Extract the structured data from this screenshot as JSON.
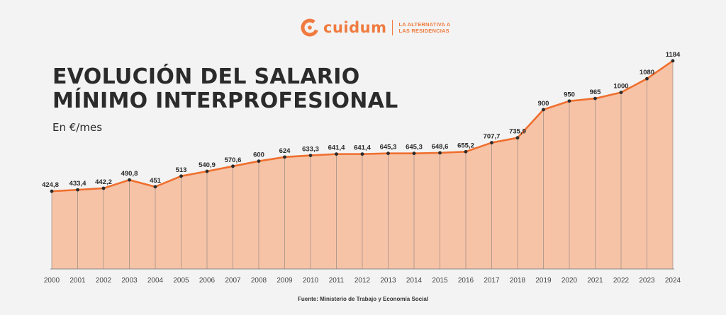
{
  "header": {
    "brand": "cuidum",
    "tagline_line1": "LA ALTERNATIVA A",
    "tagline_line2": "LAS RESIDENCIAS",
    "title_line1": "EVOLUCIÓN DEL SALARIO",
    "title_line2": "MÍNIMO INTERPROFESIONAL",
    "subtitle": "En €/mes"
  },
  "footer": {
    "source": "Fuente: Ministerio de Trabajo y Economía Social"
  },
  "colors": {
    "line": "#ef6f2e",
    "area": "#f6c3a7",
    "brand": "#f07b3f",
    "point": "#2b2b2b"
  },
  "chart_data": {
    "type": "area",
    "title": "EVOLUCIÓN DEL SALARIO MÍNIMO INTERPROFESIONAL",
    "subtitle": "En €/mes",
    "xlabel": "",
    "ylabel": "",
    "grid": false,
    "ylim": [
      0,
      1184
    ],
    "x": [
      "2000",
      "2001",
      "2002",
      "2003",
      "2004",
      "2005",
      "2006",
      "2007",
      "2008",
      "2009",
      "2010",
      "2011",
      "2012",
      "2013",
      "2014",
      "2015",
      "2016",
      "2017",
      "2018",
      "2019",
      "2020",
      "2021",
      "2022",
      "2023",
      "2024"
    ],
    "values": [
      424.8,
      433.4,
      442.2,
      490.8,
      451,
      513,
      540.9,
      570.6,
      600,
      624,
      633.3,
      641.4,
      641.4,
      645.3,
      645.3,
      648.6,
      655.2,
      707.7,
      735.9,
      900,
      950,
      965,
      1000,
      1080,
      1184
    ],
    "labels": [
      "424,8",
      "433,4",
      "442,2",
      "490,8",
      "451",
      "513",
      "540,9",
      "570,6",
      "600",
      "624",
      "633,3",
      "641,4",
      "641,4",
      "645,3",
      "645,3",
      "648,6",
      "655,2",
      "707,7",
      "735,9",
      "900",
      "950",
      "965",
      "1000",
      "1080",
      "1184"
    ]
  }
}
